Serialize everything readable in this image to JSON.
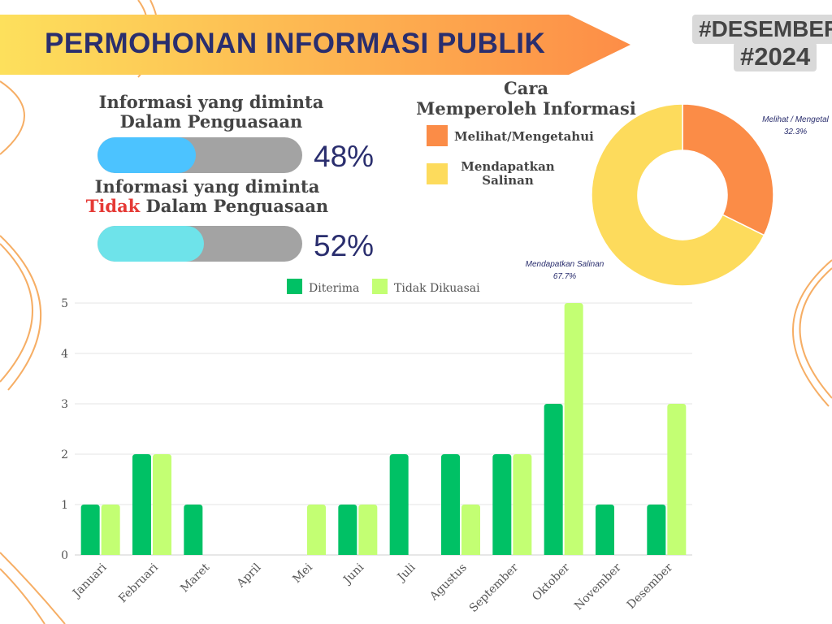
{
  "header": {
    "title": "PERMOHONAN INFORMASI PUBLIK",
    "tag_month": "#DESEMBER",
    "tag_year": "#2024"
  },
  "progress": {
    "item1": {
      "line1": "Informasi yang diminta",
      "line2": "Dalam Penguasaan",
      "percent_label": "48%",
      "fraction": 0.48,
      "color": "#4cc3ff"
    },
    "item2": {
      "line1": "Informasi yang diminta",
      "line2_red": "Tidak",
      "line2_rest": " Dalam Penguasaan",
      "percent_label": "52%",
      "fraction": 0.52,
      "color": "#6ee3ea"
    },
    "track_color": "#a3a3a3"
  },
  "donut": {
    "title_line1": "Cara",
    "title_line2": "Memperoleh Informasi",
    "legend": [
      {
        "label": "Melihat/Mengetahui",
        "color": "#fb8c47"
      },
      {
        "label": "Mendapatkan Salinan",
        "color": "#fddb5c"
      }
    ],
    "slice_labels": [
      {
        "name": "Melihat / Mengetahui",
        "shown": "Melihat / Mengetal",
        "pct": "32.3%"
      },
      {
        "name": "Mendapatkan Salinan",
        "shown": "Mendapatkan Salinan",
        "pct": "67.7%"
      }
    ]
  },
  "chart_data": [
    {
      "type": "pie",
      "title": "Cara Memperoleh Informasi",
      "categories": [
        "Melihat / Mengetahui",
        "Mendapatkan Salinan"
      ],
      "values": [
        32.3,
        67.7
      ],
      "colors": [
        "#fb8c47",
        "#fddb5c"
      ],
      "legend": "top-left"
    },
    {
      "type": "bar",
      "title": "",
      "xlabel": "",
      "ylabel": "",
      "categories": [
        "Januari",
        "Februari",
        "Maret",
        "April",
        "Mei",
        "Juni",
        "Juli",
        "Agustus",
        "September",
        "Oktober",
        "November",
        "Desember"
      ],
      "series": [
        {
          "name": "Diterima",
          "color": "#00c165",
          "values": [
            1,
            2,
            1,
            0,
            0,
            1,
            2,
            2,
            2,
            3,
            1,
            1
          ]
        },
        {
          "name": "Tidak Dikuasai",
          "color": "#c3ff73",
          "values": [
            1,
            2,
            0,
            0,
            1,
            1,
            0,
            1,
            2,
            5,
            0,
            3
          ]
        }
      ],
      "ylim": [
        0,
        5
      ],
      "yticks": [
        "0",
        "1",
        "2",
        "3",
        "4",
        "5"
      ],
      "grid": true,
      "legend": "top-center"
    }
  ]
}
